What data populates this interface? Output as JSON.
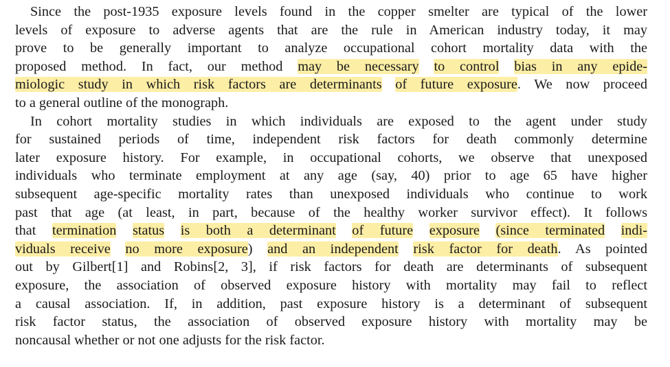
{
  "document": {
    "highlight_color": "#fdeea6",
    "paragraphs": [
      {
        "lines": [
          [
            {
              "t": "Since the post-1935 exposure levels found in the copper smelter are typical of the lower"
            }
          ],
          [
            {
              "t": "levels of exposure to adverse agents that are the rule in American industry today, it may"
            }
          ],
          [
            {
              "t": "prove to be generally important to analyze occupational cohort mortality data with the"
            }
          ],
          [
            {
              "t": "proposed method. In fact, our method "
            },
            {
              "t": "may be necessary",
              "hl": true
            },
            {
              "t": " "
            },
            {
              "t": "to control",
              "hl": true
            },
            {
              "t": " "
            },
            {
              "t": "bias in any epide-",
              "hl": true
            }
          ],
          [
            {
              "t": "miologic study in which risk factors are determinants",
              "hl": true
            },
            {
              "t": " "
            },
            {
              "t": "of future exposure",
              "hl": true
            },
            {
              "t": ". We now proceed"
            }
          ],
          [
            {
              "t": "to a general outline of the monograph."
            }
          ]
        ]
      },
      {
        "lines": [
          [
            {
              "t": "In cohort mortality studies in which individuals are exposed to the agent under study"
            }
          ],
          [
            {
              "t": "for sustained periods of time, independent risk factors for death commonly determine"
            }
          ],
          [
            {
              "t": "later exposure history. For example, in occupational cohorts, we observe that unexposed"
            }
          ],
          [
            {
              "t": "individuals who terminate employment at any age (say, 40) prior to age 65 have higher"
            }
          ],
          [
            {
              "t": "subsequent age-specific mortality rates than unexposed individuals who continue to work"
            }
          ],
          [
            {
              "t": "past that age (at least, in part, because of the healthy worker survivor effect). It follows"
            }
          ],
          [
            {
              "t": "that "
            },
            {
              "t": "termination",
              "hl": true
            },
            {
              "t": " "
            },
            {
              "t": "status",
              "hl": true
            },
            {
              "t": " "
            },
            {
              "t": "is both a determinant",
              "hl": true
            },
            {
              "t": " "
            },
            {
              "t": "of future",
              "hl": true
            },
            {
              "t": " "
            },
            {
              "t": "exposure",
              "hl": true
            },
            {
              "t": " "
            },
            {
              "t": "(since terminated",
              "hl": true
            },
            {
              "t": " "
            },
            {
              "t": "indi-",
              "hl": true
            }
          ],
          [
            {
              "t": "viduals receive",
              "hl": true
            },
            {
              "t": " "
            },
            {
              "t": "no more exposure",
              "hl": true
            },
            {
              "t": ") "
            },
            {
              "t": "and an independent",
              "hl": true
            },
            {
              "t": " "
            },
            {
              "t": "risk factor for death",
              "hl": true
            },
            {
              "t": ". As pointed"
            }
          ],
          [
            {
              "t": "out by Gilbert[1] and Robins[2, 3], if risk factors for death are determinants of subsequent"
            }
          ],
          [
            {
              "t": "exposure, the association of observed exposure history with mortality may fail to reflect"
            }
          ],
          [
            {
              "t": "a causal association. If, in addition, past exposure history is a determinant of subsequent"
            }
          ],
          [
            {
              "t": "risk factor status, the association of observed exposure history with mortality may be"
            }
          ],
          [
            {
              "t": "noncausal whether or not one adjusts for the risk factor."
            }
          ]
        ]
      }
    ]
  }
}
